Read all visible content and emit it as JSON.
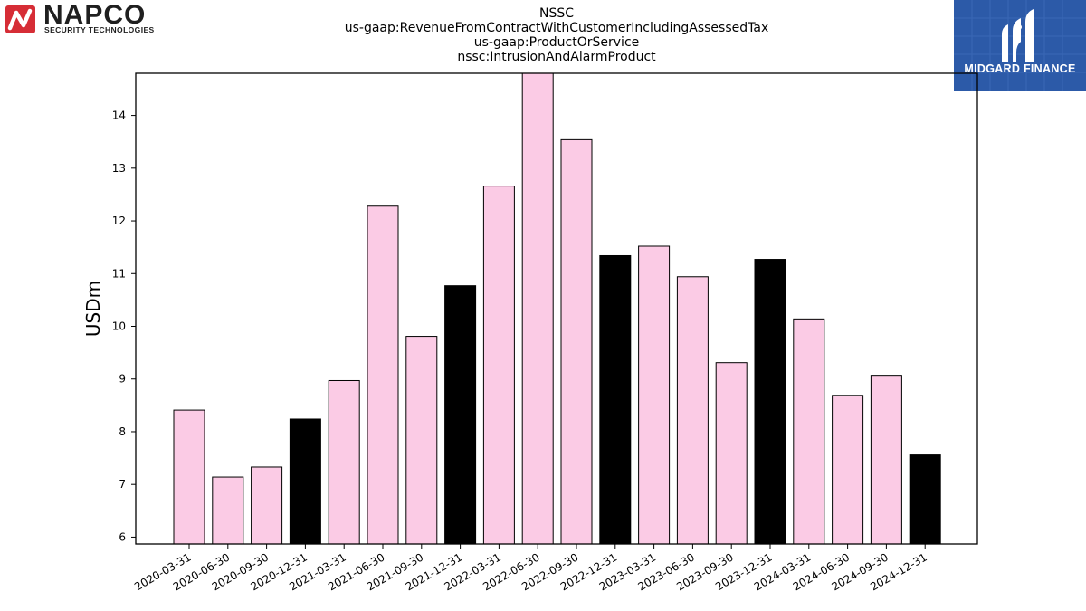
{
  "title_lines": [
    "NSSC",
    "us-gaap:RevenueFromContractWithCustomerIncludingAssessedTax",
    "us-gaap:ProductOrService",
    "nssc:IntrusionAndAlarmProduct"
  ],
  "logos": {
    "left": {
      "name": "NAPCO",
      "tagline": "SECURITY TECHNOLOGIES",
      "color": "#d62d36"
    },
    "right": {
      "name": "MIDGARD FINANCE",
      "color": "#2c5aa8"
    }
  },
  "chart_data": {
    "type": "bar",
    "ylabel": "USDm",
    "xlabel": "",
    "ylim": [
      5.87,
      14.8
    ],
    "yticks": [
      6,
      7,
      8,
      9,
      10,
      11,
      12,
      13,
      14
    ],
    "categories": [
      "2020-03-31",
      "2020-06-30",
      "2020-09-30",
      "2020-12-31",
      "2021-03-31",
      "2021-06-30",
      "2021-09-30",
      "2021-12-31",
      "2022-03-31",
      "2022-06-30",
      "2022-09-30",
      "2022-12-31",
      "2023-03-31",
      "2023-06-30",
      "2023-09-30",
      "2023-12-31",
      "2024-03-31",
      "2024-06-30",
      "2024-09-30",
      "2024-12-31"
    ],
    "values": [
      8.41,
      7.14,
      7.33,
      8.24,
      8.97,
      12.28,
      9.81,
      10.77,
      12.66,
      14.85,
      13.54,
      11.34,
      11.52,
      10.94,
      9.31,
      11.27,
      10.14,
      8.69,
      9.07,
      7.56
    ],
    "colors": {
      "quarter": "#fbcbe5",
      "year_end": "#000000",
      "edge": "#000000"
    },
    "grid": false,
    "legend": "none"
  }
}
